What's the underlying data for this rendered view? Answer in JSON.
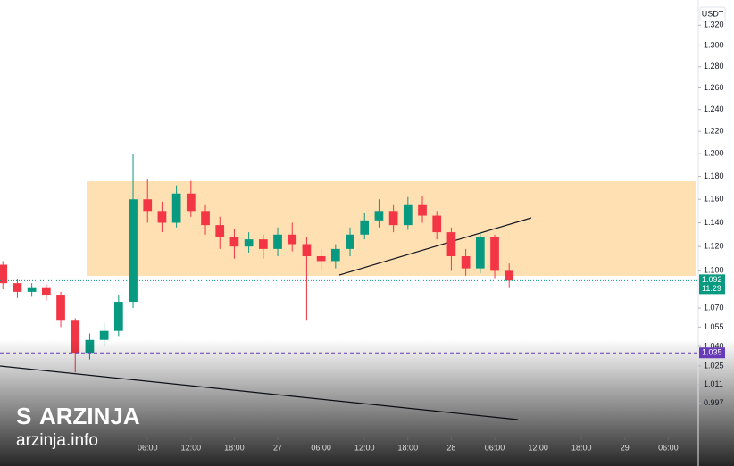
{
  "chart_data": {
    "type": "candlestick",
    "currency": "USDT",
    "log_scale": true,
    "ylim": [
      0.972,
      1.345
    ],
    "yticks": [
      {
        "value": 1.32,
        "label": "1.320"
      },
      {
        "value": 1.3,
        "label": "1.300"
      },
      {
        "value": 1.28,
        "label": "1.280"
      },
      {
        "value": 1.26,
        "label": "1.260"
      },
      {
        "value": 1.24,
        "label": "1.240"
      },
      {
        "value": 1.22,
        "label": "1.220"
      },
      {
        "value": 1.2,
        "label": "1.200"
      },
      {
        "value": 1.18,
        "label": "1.180"
      },
      {
        "value": 1.16,
        "label": "1.160"
      },
      {
        "value": 1.14,
        "label": "1.140"
      },
      {
        "value": 1.12,
        "label": "1.120"
      },
      {
        "value": 1.1,
        "label": "1.100"
      },
      {
        "value": 1.07,
        "label": "1.070"
      },
      {
        "value": 1.055,
        "label": "1.055"
      },
      {
        "value": 1.04,
        "label": "1.040"
      },
      {
        "value": 1.025,
        "label": "1.025"
      },
      {
        "value": 1.011,
        "label": "1.011"
      },
      {
        "value": 0.997,
        "label": "0.997"
      }
    ],
    "xlim": [
      -14.4,
      81.9
    ],
    "xticks": [
      {
        "value": 6,
        "label": "06:00"
      },
      {
        "value": 12,
        "label": "12:00"
      },
      {
        "value": 18,
        "label": "18:00"
      },
      {
        "value": 24,
        "label": "27"
      },
      {
        "value": 30,
        "label": "06:00"
      },
      {
        "value": 36,
        "label": "12:00"
      },
      {
        "value": 42,
        "label": "18:00"
      },
      {
        "value": 48,
        "label": "28"
      },
      {
        "value": 54,
        "label": "06:00"
      },
      {
        "value": 60,
        "label": "12:00"
      },
      {
        "value": 66,
        "label": "18:00"
      },
      {
        "value": 72,
        "label": "29"
      },
      {
        "value": 78,
        "label": "06:00"
      }
    ],
    "up_color": "#089981",
    "down_color": "#f23645",
    "x": [
      -14,
      -12,
      -10,
      -8,
      -6,
      -4,
      -2,
      0,
      2,
      4,
      6,
      8,
      10,
      12,
      14,
      16,
      18,
      20,
      22,
      24,
      26,
      28,
      30,
      32,
      34,
      36,
      38,
      40,
      42,
      44,
      46,
      48,
      50,
      52,
      54,
      56
    ],
    "open": [
      1.105,
      1.09,
      1.083,
      1.086,
      1.08,
      1.06,
      1.035,
      1.045,
      1.052,
      1.075,
      1.16,
      1.15,
      1.14,
      1.165,
      1.15,
      1.138,
      1.128,
      1.12,
      1.126,
      1.118,
      1.13,
      1.122,
      1.112,
      1.108,
      1.118,
      1.13,
      1.142,
      1.15,
      1.138,
      1.155,
      1.146,
      1.132,
      1.112,
      1.102,
      1.128,
      1.1
    ],
    "high": [
      1.108,
      1.093,
      1.09,
      1.089,
      1.083,
      1.062,
      1.05,
      1.058,
      1.08,
      1.2,
      1.178,
      1.158,
      1.172,
      1.176,
      1.155,
      1.145,
      1.135,
      1.132,
      1.13,
      1.136,
      1.14,
      1.128,
      1.118,
      1.122,
      1.136,
      1.148,
      1.16,
      1.155,
      1.162,
      1.163,
      1.15,
      1.136,
      1.118,
      1.132,
      1.13,
      1.106
    ],
    "low": [
      1.085,
      1.078,
      1.079,
      1.076,
      1.055,
      1.02,
      1.03,
      1.04,
      1.048,
      1.07,
      1.14,
      1.132,
      1.136,
      1.145,
      1.13,
      1.118,
      1.11,
      1.115,
      1.11,
      1.112,
      1.116,
      1.06,
      1.1,
      1.102,
      1.112,
      1.126,
      1.136,
      1.132,
      1.134,
      1.14,
      1.126,
      1.1,
      1.096,
      1.098,
      1.094,
      1.086
    ],
    "close": [
      1.09,
      1.083,
      1.086,
      1.08,
      1.06,
      1.035,
      1.045,
      1.052,
      1.075,
      1.16,
      1.15,
      1.14,
      1.165,
      1.15,
      1.138,
      1.128,
      1.12,
      1.126,
      1.118,
      1.13,
      1.122,
      1.112,
      1.108,
      1.118,
      1.13,
      1.142,
      1.15,
      1.138,
      1.155,
      1.146,
      1.132,
      1.112,
      1.102,
      1.128,
      1.1,
      1.092
    ],
    "last_price": 1.092,
    "countdown": "11:29",
    "level_price": 1.035,
    "watermark": "ARZINJA",
    "watermark_url": "arzinja.info"
  }
}
